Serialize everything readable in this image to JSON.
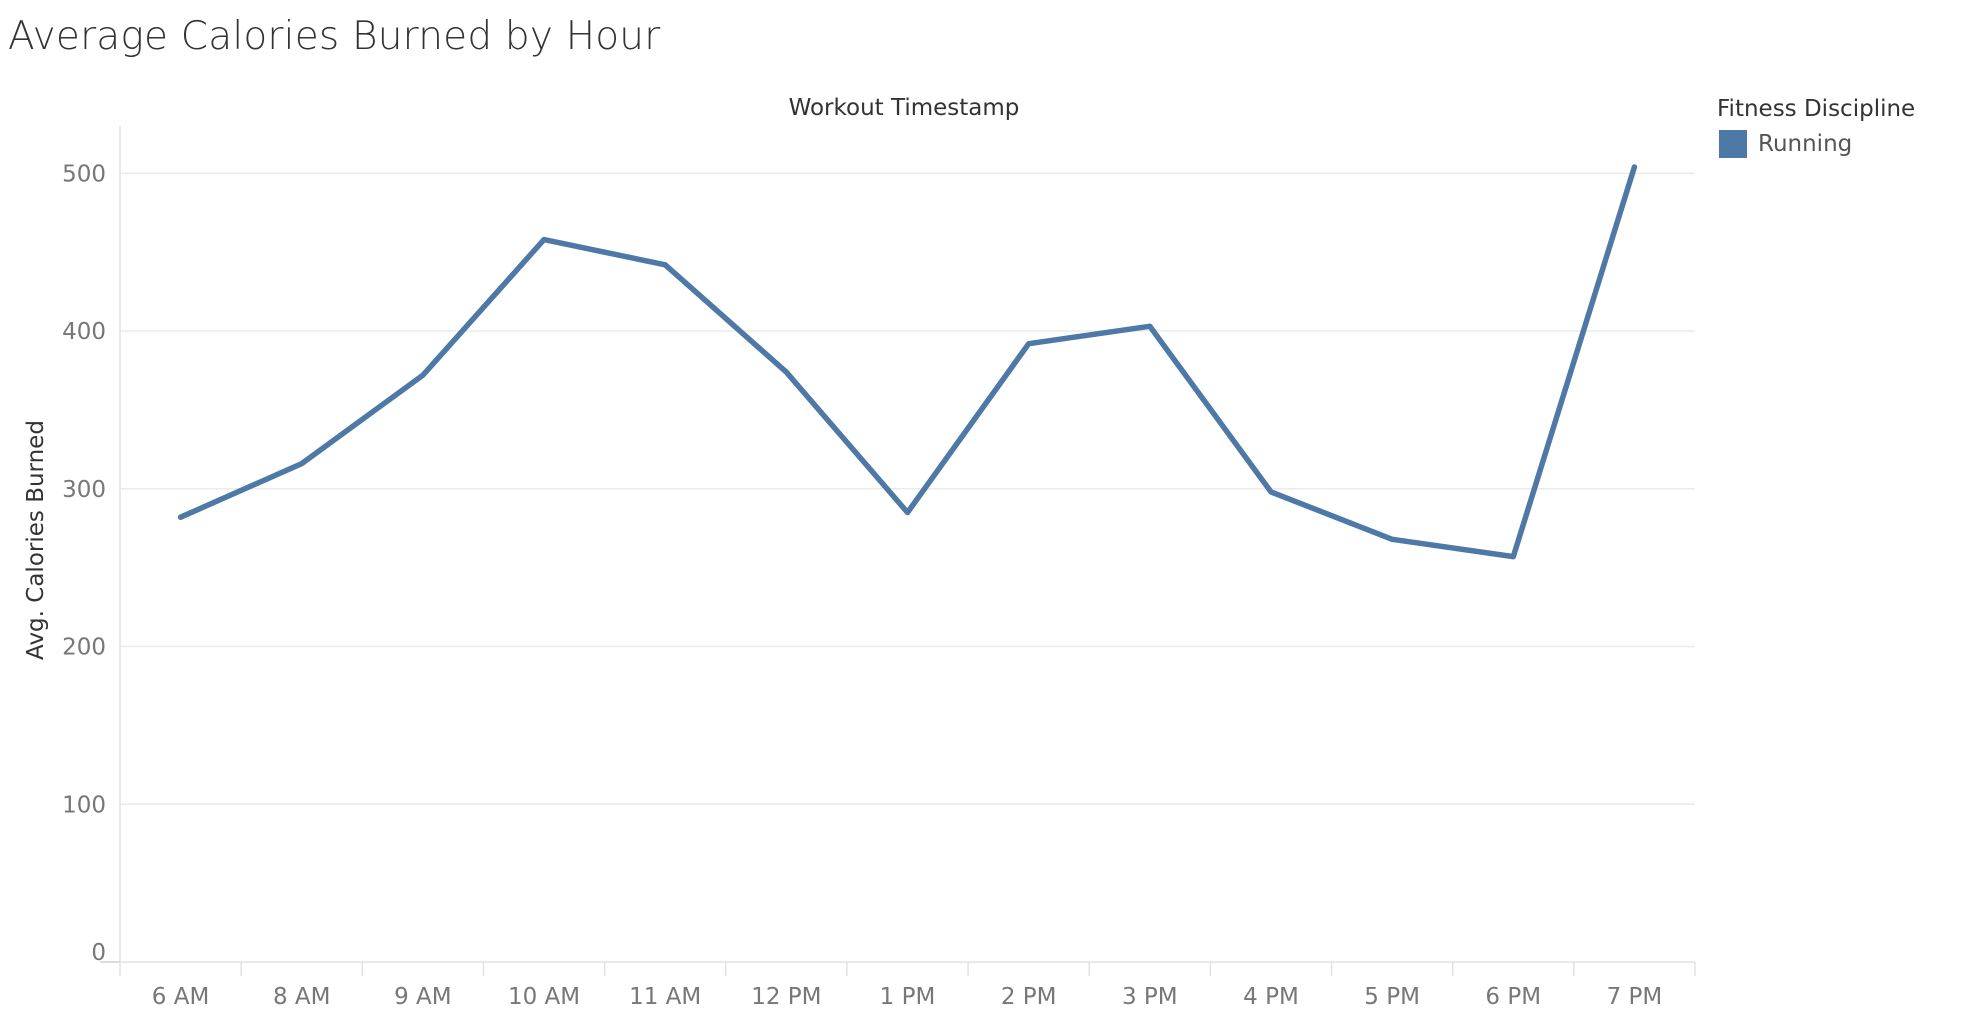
{
  "chart_data": {
    "type": "line",
    "title": "Average Calories Burned by Hour",
    "header_label": "Workout Timestamp",
    "xlabel": "",
    "ylabel": "Avg. Calories Burned",
    "categories": [
      "6 AM",
      "8 AM",
      "9 AM",
      "10 AM",
      "11 AM",
      "12 PM",
      "1 PM",
      "2 PM",
      "3 PM",
      "4 PM",
      "5 PM",
      "6 PM",
      "7 PM"
    ],
    "series": [
      {
        "name": "Running",
        "color": "#4e79a7",
        "values": [
          282,
          316,
          372,
          458,
          442,
          374,
          285,
          392,
          403,
          298,
          268,
          257,
          504
        ]
      }
    ],
    "y_ticks": [
      0,
      100,
      200,
      300,
      400,
      500
    ],
    "ylim": [
      0,
      530
    ],
    "grid": true,
    "legend": {
      "title": "Fitness Discipline",
      "position": "top-right"
    }
  }
}
